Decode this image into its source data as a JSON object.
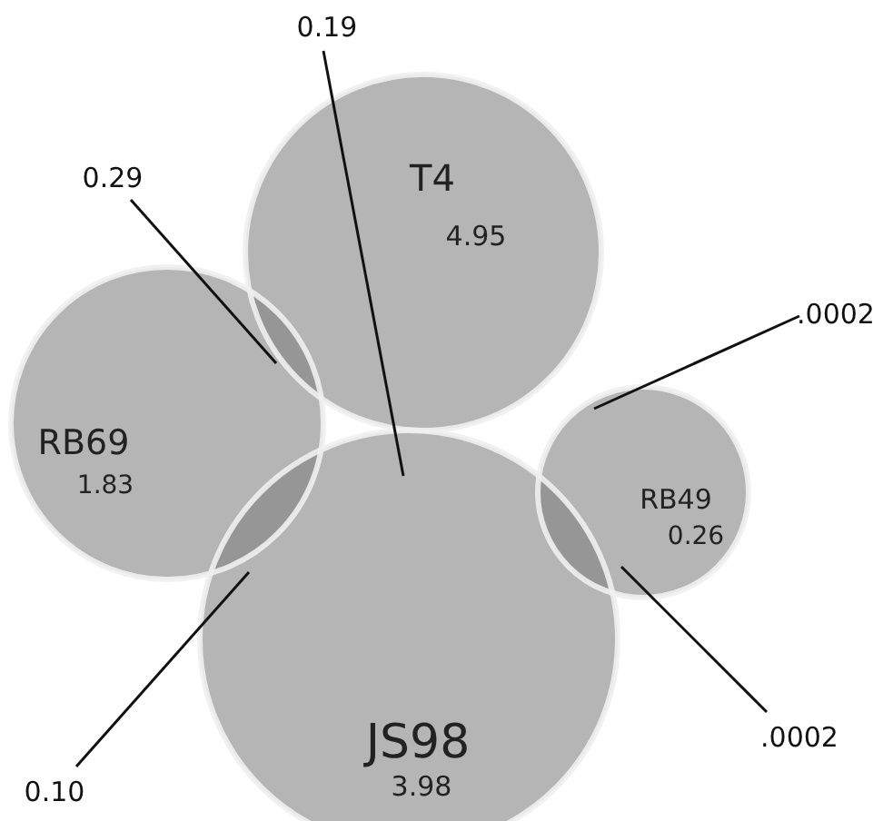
{
  "chart_data": {
    "type": "other",
    "categories": [
      "T4",
      "RB69",
      "RB49",
      "JS98"
    ],
    "values": [
      4.95,
      1.83,
      0.26,
      3.98
    ],
    "color": "#808080",
    "data_labels": true,
    "annotations": [
      "0.19",
      "0.29",
      ".0002",
      "0.10",
      ".0002"
    ]
  }
}
